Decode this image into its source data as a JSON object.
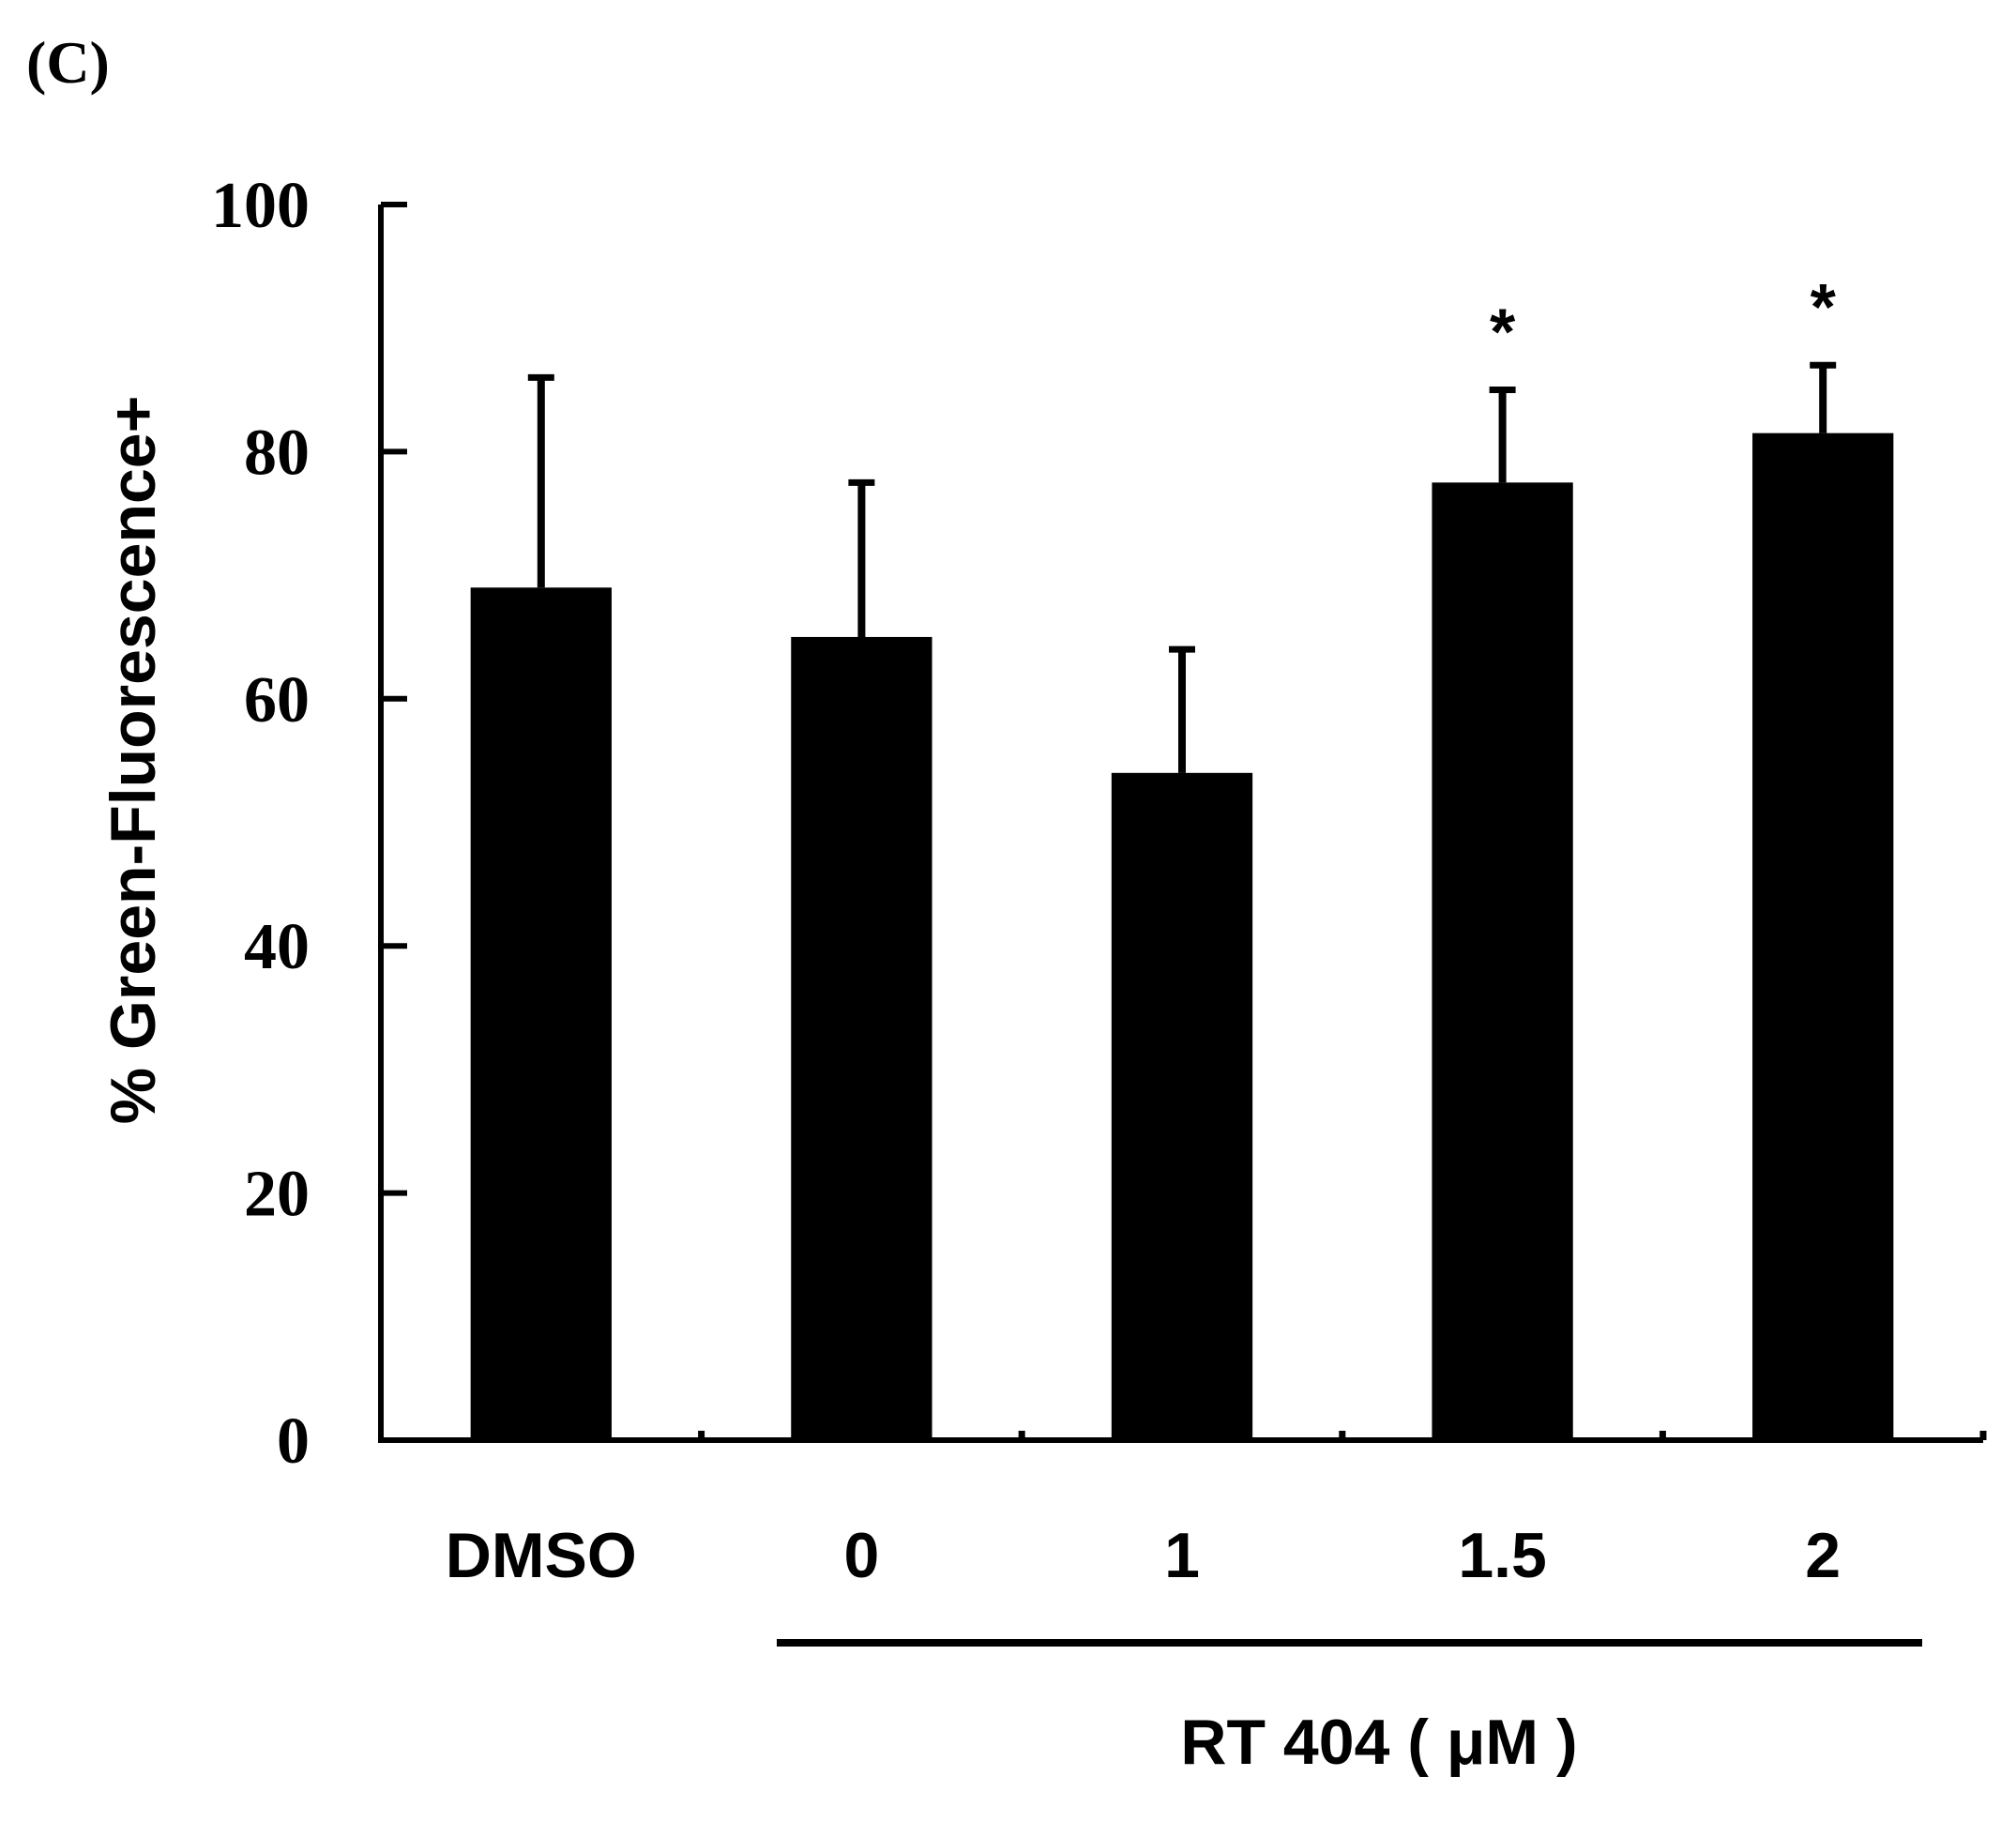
{
  "panel_label": "(C)",
  "chart_data": {
    "type": "bar",
    "title": "",
    "ylabel": "% Green-Fluorescence+",
    "xlabel": "RT 404 ( μM )",
    "ylim": [
      0,
      100
    ],
    "yticks": [
      "0",
      "20",
      "40",
      "60",
      "80",
      "100"
    ],
    "categories": [
      "DMSO",
      "0",
      "1",
      "1.5",
      "2"
    ],
    "series": [
      {
        "values": [
          69,
          65,
          54,
          77.5,
          81.5
        ],
        "errors": [
          17,
          12.5,
          10,
          7.5,
          5.5
        ],
        "annotations": [
          "",
          "",
          "",
          "*",
          "*"
        ]
      }
    ],
    "bar_color": "#000000",
    "grid": false,
    "legend": "none"
  }
}
